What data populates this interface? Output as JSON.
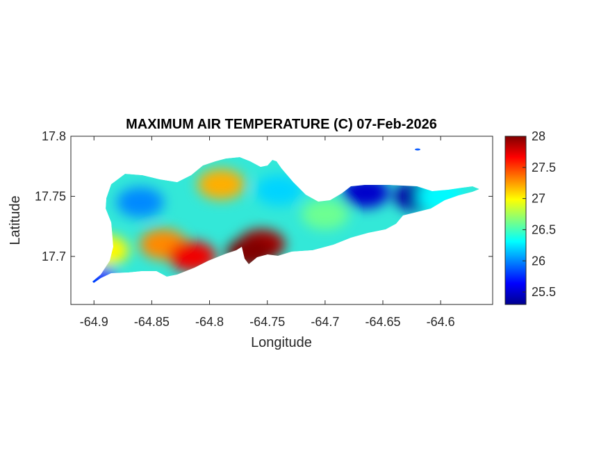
{
  "chart_data": {
    "type": "heatmap",
    "title": "MAXIMUM AIR TEMPERATURE (C) 07-Feb-2026",
    "xlabel": "Longitude",
    "ylabel": "Latitude",
    "xlim": [
      -64.92,
      -64.555
    ],
    "ylim": [
      17.66,
      17.8
    ],
    "x_ticks": [
      "-64.9",
      "-64.85",
      "-64.8",
      "-64.75",
      "-64.7",
      "-64.65",
      "-64.6"
    ],
    "y_ticks": [
      "17.8",
      "17.75",
      "17.7"
    ],
    "colorbar": {
      "colormap": "jet",
      "range": [
        25.3,
        28.0
      ],
      "ticks": [
        "28",
        "27.5",
        "27",
        "26.5",
        "26",
        "25.5"
      ]
    },
    "regions": [
      {
        "lon": -64.84,
        "lat": 17.71,
        "value": 27.3
      },
      {
        "lon": -64.815,
        "lat": 17.7,
        "value": 27.7
      },
      {
        "lon": -64.79,
        "lat": 17.76,
        "value": 27.2
      },
      {
        "lon": -64.755,
        "lat": 17.71,
        "value": 27.9
      },
      {
        "lon": -64.765,
        "lat": 17.703,
        "value": 28.0
      },
      {
        "lon": -64.86,
        "lat": 17.745,
        "value": 26.0
      },
      {
        "lon": -64.74,
        "lat": 17.755,
        "value": 26.2
      },
      {
        "lon": -64.62,
        "lat": 17.75,
        "value": 25.4
      },
      {
        "lon": -64.665,
        "lat": 17.753,
        "value": 25.5
      },
      {
        "lon": -64.7,
        "lat": 17.735,
        "value": 26.6
      },
      {
        "lon": -64.6,
        "lat": 17.75,
        "value": 26.3
      },
      {
        "lon": -64.89,
        "lat": 17.705,
        "value": 27.0
      },
      {
        "lon": -64.9,
        "lat": 17.68,
        "value": 25.8
      }
    ]
  }
}
